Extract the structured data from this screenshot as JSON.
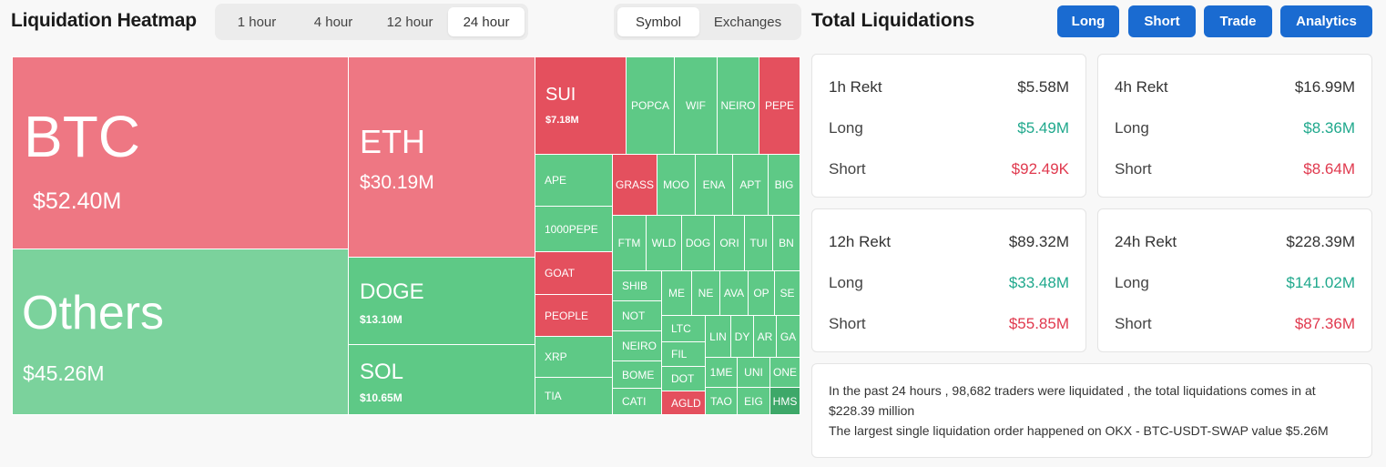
{
  "heatmap": {
    "title": "Liquidation Heatmap",
    "time_tabs": [
      {
        "label": "1 hour",
        "active": false
      },
      {
        "label": "4 hour",
        "active": false
      },
      {
        "label": "12 hour",
        "active": false
      },
      {
        "label": "24 hour",
        "active": true
      }
    ],
    "view_tabs": [
      {
        "label": "Symbol",
        "active": true
      },
      {
        "label": "Exchanges",
        "active": false
      }
    ],
    "cells": [
      {
        "symbol": "BTC",
        "value": "$52.40M",
        "color": "pink"
      },
      {
        "symbol": "Others",
        "value": "$45.26M",
        "color": "light"
      },
      {
        "symbol": "ETH",
        "value": "$30.19M",
        "color": "pink"
      },
      {
        "symbol": "DOGE",
        "value": "$13.10M",
        "color": "green"
      },
      {
        "symbol": "SOL",
        "value": "$10.65M",
        "color": "green"
      },
      {
        "symbol": "SUI",
        "value": "$7.18M",
        "color": "red"
      },
      {
        "symbol": "POPCA",
        "color": "green"
      },
      {
        "symbol": "WIF",
        "color": "green"
      },
      {
        "symbol": "NEIRO",
        "color": "green"
      },
      {
        "symbol": "PEPE",
        "color": "red"
      },
      {
        "symbol": "APE",
        "color": "green"
      },
      {
        "symbol": "1000PEPE",
        "color": "green"
      },
      {
        "symbol": "GOAT",
        "color": "red"
      },
      {
        "symbol": "PEOPLE",
        "color": "red"
      },
      {
        "symbol": "XRP",
        "color": "green"
      },
      {
        "symbol": "TIA",
        "color": "green"
      },
      {
        "symbol": "GRASS",
        "color": "red"
      },
      {
        "symbol": "MOO",
        "color": "green"
      },
      {
        "symbol": "ENA",
        "color": "green"
      },
      {
        "symbol": "APT",
        "color": "green"
      },
      {
        "symbol": "BIG",
        "color": "green"
      },
      {
        "symbol": "FTM",
        "color": "green"
      },
      {
        "symbol": "WLD",
        "color": "green"
      },
      {
        "symbol": "DOG",
        "color": "green"
      },
      {
        "symbol": "ORI",
        "color": "green"
      },
      {
        "symbol": "TUI",
        "color": "green"
      },
      {
        "symbol": "BN",
        "color": "green"
      },
      {
        "symbol": "SHIB",
        "color": "green"
      },
      {
        "symbol": "NOT",
        "color": "green"
      },
      {
        "symbol": "NEIRO",
        "color": "green"
      },
      {
        "symbol": "BOME",
        "color": "green"
      },
      {
        "symbol": "CATI",
        "color": "green"
      },
      {
        "symbol": "ME",
        "color": "green"
      },
      {
        "symbol": "NE",
        "color": "green"
      },
      {
        "symbol": "AVA",
        "color": "green"
      },
      {
        "symbol": "OP",
        "color": "green"
      },
      {
        "symbol": "SE",
        "color": "green"
      },
      {
        "symbol": "LTC",
        "color": "green"
      },
      {
        "symbol": "FIL",
        "color": "green"
      },
      {
        "symbol": "DOT",
        "color": "green"
      },
      {
        "symbol": "AGLD",
        "color": "red"
      },
      {
        "symbol": "LIN",
        "color": "green"
      },
      {
        "symbol": "DY",
        "color": "green"
      },
      {
        "symbol": "AR",
        "color": "green"
      },
      {
        "symbol": "GA",
        "color": "green"
      },
      {
        "symbol": "1ME",
        "color": "green"
      },
      {
        "symbol": "UNI",
        "color": "green"
      },
      {
        "symbol": "ONE",
        "color": "green"
      },
      {
        "symbol": "TAO",
        "color": "green"
      },
      {
        "symbol": "EIG",
        "color": "green"
      },
      {
        "symbol": "HMS",
        "color": "dark"
      }
    ]
  },
  "totals": {
    "title": "Total Liquidations",
    "buttons": [
      "Long",
      "Short",
      "Trade",
      "Analytics"
    ],
    "cards": [
      {
        "title": "1h Rekt",
        "total": "$5.58M",
        "long_label": "Long",
        "long": "$5.49M",
        "short_label": "Short",
        "short": "$92.49K"
      },
      {
        "title": "4h Rekt",
        "total": "$16.99M",
        "long_label": "Long",
        "long": "$8.36M",
        "short_label": "Short",
        "short": "$8.64M"
      },
      {
        "title": "12h Rekt",
        "total": "$89.32M",
        "long_label": "Long",
        "long": "$33.48M",
        "short_label": "Short",
        "short": "$55.85M"
      },
      {
        "title": "24h Rekt",
        "total": "$228.39M",
        "long_label": "Long",
        "long": "$141.02M",
        "short_label": "Short",
        "short": "$87.36M"
      }
    ],
    "summary": {
      "line1": "In the past 24 hours , 98,682 traders were liquidated , the total liquidations comes in at $228.39 million",
      "line2": "The largest single liquidation order happened on OKX - BTC-USDT-SWAP value $5.26M"
    }
  },
  "colors": {
    "red": "#e4505e",
    "pink": "#ee7783",
    "green": "#5ec986",
    "light": "#7bd29c",
    "dark": "#3ea869",
    "button": "#1a6bd1",
    "long_text": "#1fa88c",
    "short_text": "#e0394e"
  }
}
